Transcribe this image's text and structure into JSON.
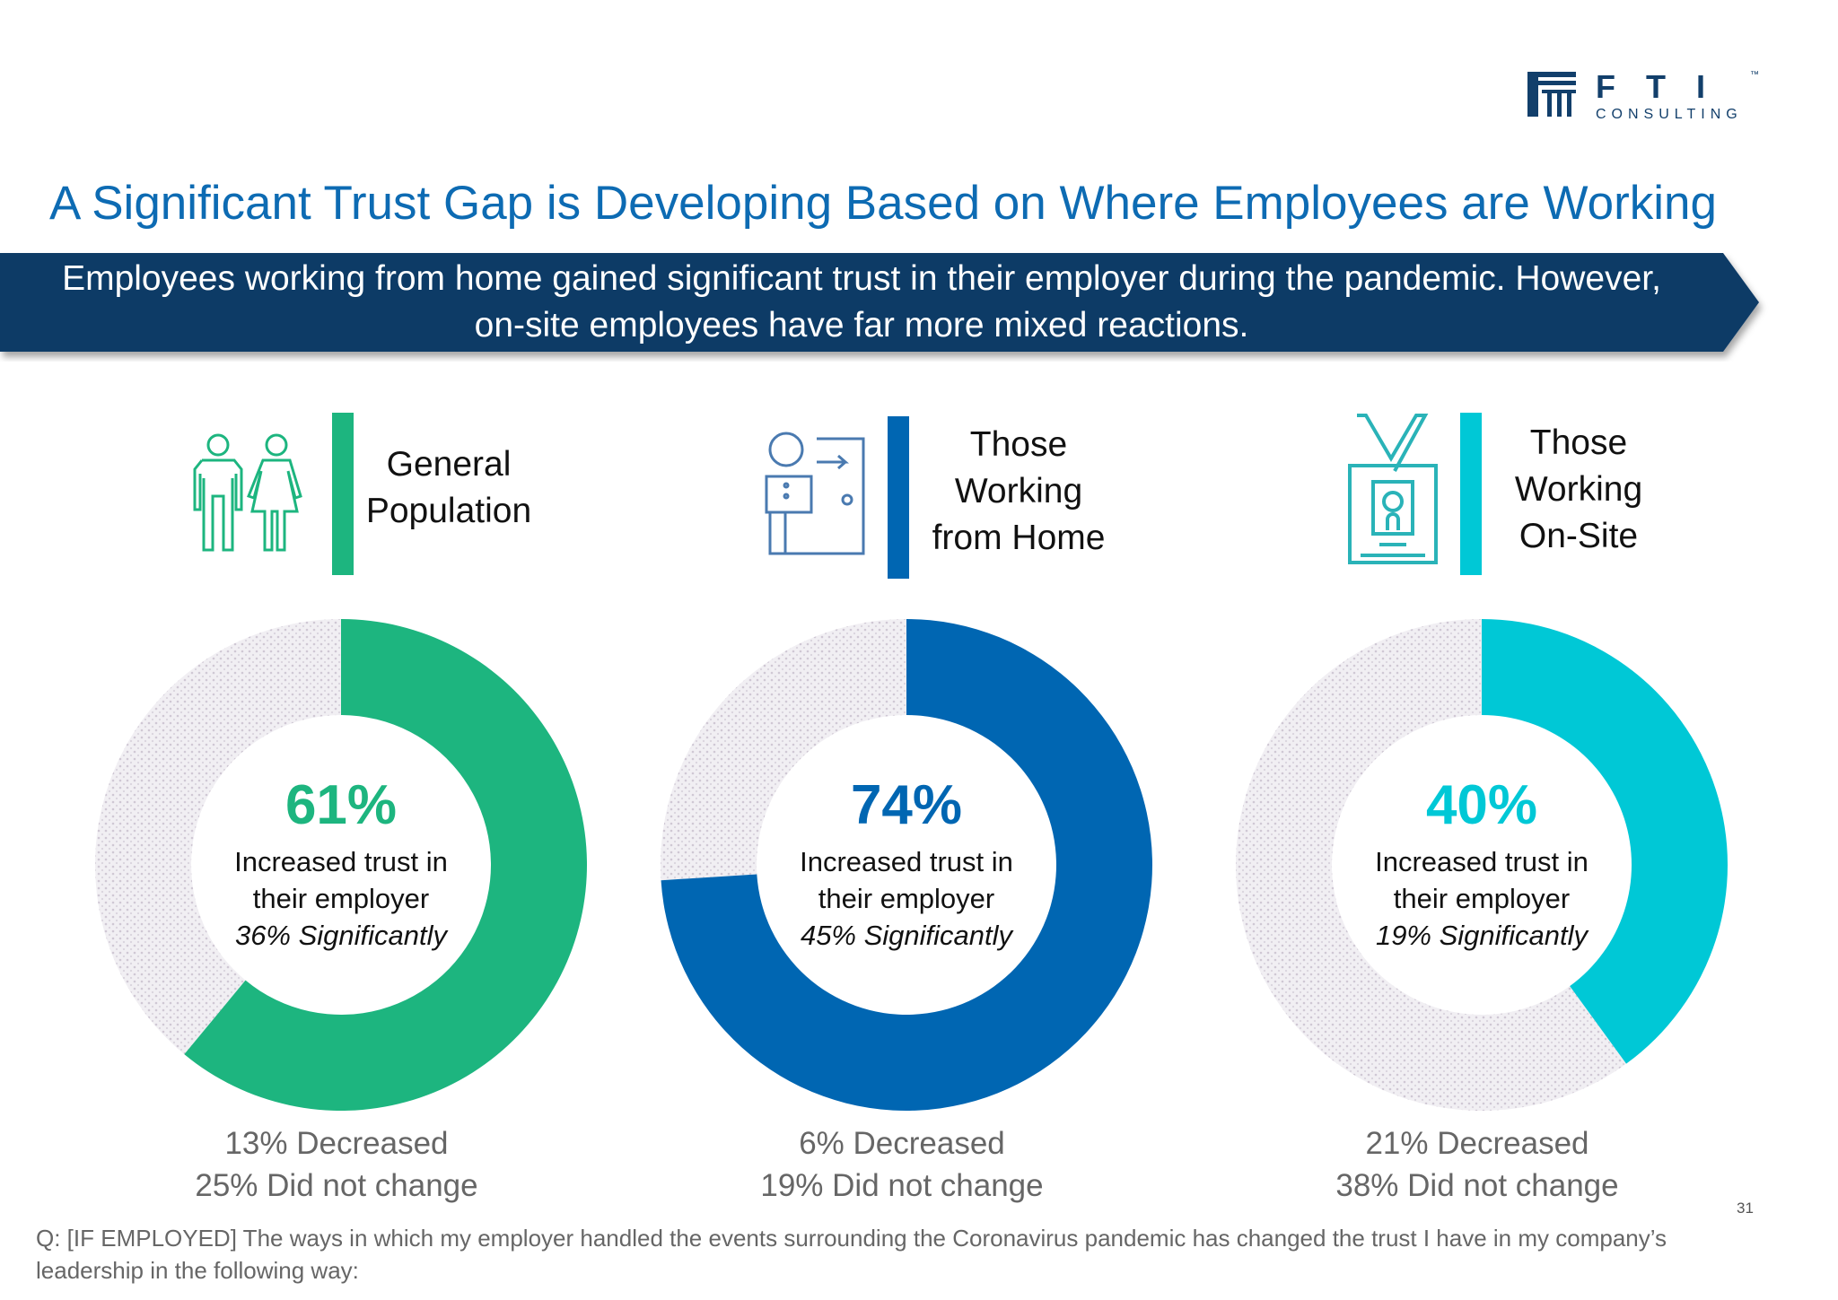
{
  "logo": {
    "letters": "F T I",
    "sub": "CONSULTING",
    "tm": "™"
  },
  "title": "A Significant Trust Gap is Developing Based on Where Employees are Working",
  "banner": {
    "line1": "Employees working from home gained significant trust in their employer during the pandemic. However,",
    "line2": "on-site employees have far more mixed reactions."
  },
  "colors": {
    "green": "#1db57f",
    "blue": "#0066b2",
    "cyan": "#00c8d6",
    "navy": "#0d3a66",
    "title": "#0d6bb3"
  },
  "segments": [
    {
      "label_lines": [
        "General",
        "Population"
      ],
      "icon": "people-icon",
      "color": "#1db57f",
      "increased_pct": 61,
      "pct_text": "61%",
      "line1": "Increased trust in",
      "line2": "their employer",
      "significant": "36% Significantly",
      "decreased": "13% Decreased",
      "no_change": "25% Did not change"
    },
    {
      "label_lines": [
        "Those",
        "Working",
        "from Home"
      ],
      "icon": "home-office-icon",
      "color": "#0066b2",
      "increased_pct": 74,
      "pct_text": "74%",
      "line1": "Increased trust in",
      "line2": "their employer",
      "significant": "45% Significantly",
      "decreased": "6% Decreased",
      "no_change": "19% Did not change"
    },
    {
      "label_lines": [
        "Those",
        "Working",
        "On-Site"
      ],
      "icon": "id-badge-icon",
      "color": "#00c8d6",
      "increased_pct": 40,
      "pct_text": "40%",
      "line1": "Increased trust in",
      "line2": "their employer",
      "significant": "19% Significantly",
      "decreased": "21% Decreased",
      "no_change": "38% Did not change"
    }
  ],
  "footnote": "Q: [IF EMPLOYED] The ways in which my employer handled the events surrounding the Coronavirus pandemic has changed the trust I have in my company’s leadership in the following way:",
  "page_number": "31"
}
